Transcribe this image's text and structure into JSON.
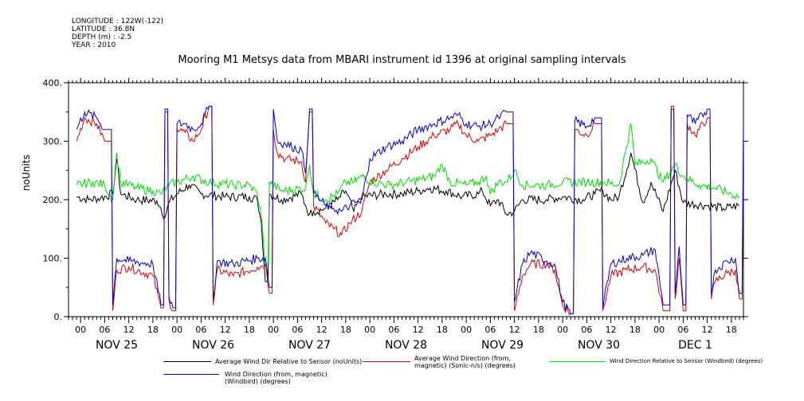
{
  "meta": {
    "longitude": "LONGITUDE : 122W(-122)",
    "latitude": "LATITUDE : 36.8N",
    "depth": "DEPTH (m) : -2.5",
    "year": "YEAR : 2010"
  },
  "colors": {
    "sensor_rel": "#000000",
    "sonic": "#dd0000",
    "windbird_rel": "#00dd00",
    "windbird_dir": "#0000cc"
  },
  "chart_data": {
    "type": "line",
    "title": "Mooring M1 Metsys data from MBARI instrument id 1396 at original sampling intervals",
    "xlabel": "",
    "ylabel": "noUnits",
    "ylim": [
      0,
      400
    ],
    "yticks": [
      "0.",
      "100.",
      "200.",
      "300.",
      "400."
    ],
    "x_unit": "hours since 2010-11-25 00:00",
    "xlim": [
      -3,
      165
    ],
    "hour_ticks": [
      "00",
      "06",
      "12",
      "18"
    ],
    "day_labels": [
      "NOV 25",
      "NOV 26",
      "NOV 27",
      "NOV 28",
      "NOV 29",
      "NOV 30",
      "DEC  1"
    ],
    "grid": false,
    "legend_position": "bottom",
    "series": [
      {
        "name": "Average Wind Dir Relative to Sensor (noUnits)",
        "color": "#000000",
        "points": [
          [
            -1,
            205
          ],
          [
            2,
            200
          ],
          [
            5,
            203
          ],
          [
            8,
            210
          ],
          [
            9,
            270
          ],
          [
            10,
            210
          ],
          [
            14,
            200
          ],
          [
            19,
            198
          ],
          [
            20,
            185
          ],
          [
            21,
            170
          ],
          [
            22,
            195
          ],
          [
            24,
            210
          ],
          [
            27,
            225
          ],
          [
            30,
            210
          ],
          [
            36,
            205
          ],
          [
            42,
            205
          ],
          [
            44,
            200
          ],
          [
            45,
            160
          ],
          [
            46,
            60
          ],
          [
            47,
            210
          ],
          [
            50,
            200
          ],
          [
            55,
            210
          ],
          [
            56,
            190
          ],
          [
            57,
            175
          ],
          [
            58,
            180
          ],
          [
            61,
            185
          ],
          [
            64,
            200
          ],
          [
            66,
            215
          ],
          [
            68,
            180
          ],
          [
            70,
            205
          ],
          [
            76,
            210
          ],
          [
            80,
            210
          ],
          [
            84,
            215
          ],
          [
            87,
            220
          ],
          [
            91,
            215
          ],
          [
            95,
            205
          ],
          [
            99,
            210
          ],
          [
            100,
            215
          ],
          [
            102,
            190
          ],
          [
            104,
            200
          ],
          [
            106,
            175
          ],
          [
            108,
            180
          ],
          [
            110,
            200
          ],
          [
            116,
            200
          ],
          [
            120,
            205
          ],
          [
            125,
            200
          ],
          [
            128,
            210
          ],
          [
            130,
            215
          ],
          [
            132,
            200
          ],
          [
            134,
            205
          ],
          [
            137,
            280
          ],
          [
            140,
            195
          ],
          [
            142,
            230
          ],
          [
            145,
            180
          ],
          [
            148,
            250
          ],
          [
            150,
            195
          ],
          [
            156,
            190
          ],
          [
            160,
            185
          ],
          [
            164,
            190
          ]
        ]
      },
      {
        "name": "Average Wind Direction (from, magnetic) (Sonic-n/s) (degrees)",
        "color": "#dd0000",
        "points": [
          [
            -1,
            300
          ],
          [
            1,
            340
          ],
          [
            4,
            330
          ],
          [
            6,
            300
          ],
          [
            8,
            10
          ],
          [
            9,
            80
          ],
          [
            12,
            85
          ],
          [
            18,
            70
          ],
          [
            20,
            15
          ],
          [
            21,
            350
          ],
          [
            22,
            30
          ],
          [
            23,
            10
          ],
          [
            24,
            320
          ],
          [
            26,
            315
          ],
          [
            28,
            300
          ],
          [
            30,
            320
          ],
          [
            32,
            360
          ],
          [
            33,
            20
          ],
          [
            34,
            80
          ],
          [
            38,
            70
          ],
          [
            44,
            85
          ],
          [
            46,
            90
          ],
          [
            47,
            40
          ],
          [
            48,
            320
          ],
          [
            49,
            280
          ],
          [
            51,
            270
          ],
          [
            55,
            265
          ],
          [
            56,
            230
          ],
          [
            57,
            350
          ],
          [
            58,
            190
          ],
          [
            61,
            160
          ],
          [
            63,
            150
          ],
          [
            65,
            140
          ],
          [
            67,
            160
          ],
          [
            70,
            180
          ],
          [
            72,
            230
          ],
          [
            76,
            250
          ],
          [
            80,
            270
          ],
          [
            84,
            290
          ],
          [
            88,
            310
          ],
          [
            92,
            320
          ],
          [
            94,
            330
          ],
          [
            96,
            310
          ],
          [
            99,
            300
          ],
          [
            102,
            310
          ],
          [
            104,
            320
          ],
          [
            106,
            330
          ],
          [
            108,
            10
          ],
          [
            110,
            70
          ],
          [
            112,
            90
          ],
          [
            116,
            90
          ],
          [
            118,
            80
          ],
          [
            120,
            20
          ],
          [
            122,
            5
          ],
          [
            123,
            320
          ],
          [
            126,
            310
          ],
          [
            128,
            330
          ],
          [
            130,
            10
          ],
          [
            132,
            70
          ],
          [
            136,
            80
          ],
          [
            140,
            85
          ],
          [
            143,
            80
          ],
          [
            145,
            10
          ],
          [
            147,
            360
          ],
          [
            148,
            30
          ],
          [
            149,
            100
          ],
          [
            150,
            10
          ],
          [
            151,
            330
          ],
          [
            153,
            310
          ],
          [
            156,
            340
          ],
          [
            157,
            30
          ],
          [
            158,
            60
          ],
          [
            161,
            75
          ],
          [
            163,
            80
          ],
          [
            164,
            30
          ],
          [
            165,
            310
          ],
          [
            167,
            300
          ]
        ]
      },
      {
        "name": "Wind Direction Relative to Sensor (Windbird) (degrees)",
        "color": "#00dd00",
        "points": [
          [
            -1,
            225
          ],
          [
            3,
            230
          ],
          [
            6,
            225
          ],
          [
            8,
            200
          ],
          [
            9,
            280
          ],
          [
            10,
            230
          ],
          [
            14,
            220
          ],
          [
            18,
            215
          ],
          [
            20,
            210
          ],
          [
            22,
            225
          ],
          [
            24,
            230
          ],
          [
            28,
            240
          ],
          [
            32,
            230
          ],
          [
            38,
            225
          ],
          [
            42,
            225
          ],
          [
            44,
            210
          ],
          [
            45,
            170
          ],
          [
            46,
            90
          ],
          [
            47,
            230
          ],
          [
            50,
            215
          ],
          [
            56,
            220
          ],
          [
            57,
            260
          ],
          [
            58,
            210
          ],
          [
            61,
            200
          ],
          [
            64,
            210
          ],
          [
            66,
            230
          ],
          [
            68,
            230
          ],
          [
            70,
            240
          ],
          [
            73,
            230
          ],
          [
            77,
            225
          ],
          [
            81,
            230
          ],
          [
            85,
            235
          ],
          [
            88,
            240
          ],
          [
            90,
            260
          ],
          [
            92,
            230
          ],
          [
            96,
            225
          ],
          [
            99,
            230
          ],
          [
            101,
            240
          ],
          [
            102,
            210
          ],
          [
            104,
            230
          ],
          [
            106,
            230
          ],
          [
            108,
            250
          ],
          [
            110,
            225
          ],
          [
            116,
            225
          ],
          [
            120,
            230
          ],
          [
            126,
            230
          ],
          [
            130,
            230
          ],
          [
            134,
            225
          ],
          [
            137,
            330
          ],
          [
            138,
            260
          ],
          [
            142,
            270
          ],
          [
            145,
            230
          ],
          [
            148,
            260
          ],
          [
            150,
            240
          ],
          [
            154,
            225
          ],
          [
            158,
            220
          ],
          [
            162,
            210
          ],
          [
            164,
            205
          ]
        ]
      },
      {
        "name": "Wind Direction (from, magnetic) (Windbird) (degrees)",
        "color": "#0000cc",
        "points": [
          [
            -1,
            320
          ],
          [
            1,
            350
          ],
          [
            4,
            340
          ],
          [
            6,
            320
          ],
          [
            8,
            20
          ],
          [
            9,
            100
          ],
          [
            12,
            95
          ],
          [
            18,
            90
          ],
          [
            20,
            20
          ],
          [
            21,
            355
          ],
          [
            22,
            35
          ],
          [
            23,
            15
          ],
          [
            24,
            330
          ],
          [
            26,
            330
          ],
          [
            28,
            320
          ],
          [
            30,
            330
          ],
          [
            32,
            360
          ],
          [
            33,
            30
          ],
          [
            34,
            95
          ],
          [
            38,
            90
          ],
          [
            44,
            100
          ],
          [
            46,
            100
          ],
          [
            47,
            50
          ],
          [
            48,
            355
          ],
          [
            49,
            300
          ],
          [
            51,
            295
          ],
          [
            55,
            285
          ],
          [
            56,
            245
          ],
          [
            57,
            355
          ],
          [
            58,
            210
          ],
          [
            61,
            190
          ],
          [
            63,
            185
          ],
          [
            65,
            180
          ],
          [
            67,
            190
          ],
          [
            70,
            200
          ],
          [
            72,
            270
          ],
          [
            76,
            290
          ],
          [
            80,
            300
          ],
          [
            84,
            320
          ],
          [
            88,
            330
          ],
          [
            92,
            340
          ],
          [
            94,
            345
          ],
          [
            96,
            330
          ],
          [
            99,
            325
          ],
          [
            102,
            330
          ],
          [
            104,
            340
          ],
          [
            106,
            350
          ],
          [
            108,
            25
          ],
          [
            110,
            90
          ],
          [
            112,
            110
          ],
          [
            116,
            95
          ],
          [
            118,
            90
          ],
          [
            120,
            25
          ],
          [
            122,
            5
          ],
          [
            123,
            335
          ],
          [
            126,
            325
          ],
          [
            128,
            340
          ],
          [
            130,
            15
          ],
          [
            132,
            90
          ],
          [
            136,
            100
          ],
          [
            140,
            105
          ],
          [
            143,
            115
          ],
          [
            145,
            20
          ],
          [
            147,
            355
          ],
          [
            148,
            40
          ],
          [
            149,
            120
          ],
          [
            150,
            20
          ],
          [
            151,
            345
          ],
          [
            153,
            330
          ],
          [
            156,
            355
          ],
          [
            157,
            40
          ],
          [
            158,
            80
          ],
          [
            161,
            95
          ],
          [
            163,
            100
          ],
          [
            164,
            40
          ],
          [
            165,
            330
          ],
          [
            167,
            320
          ]
        ]
      }
    ]
  }
}
